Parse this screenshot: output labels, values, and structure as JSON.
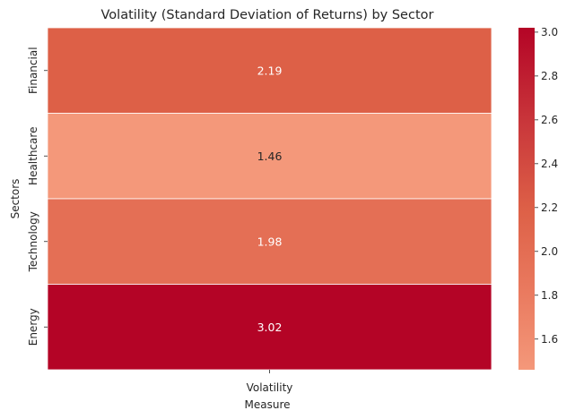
{
  "chart_data": {
    "type": "heatmap",
    "title": "Volatility (Standard Deviation of Returns) by Sector",
    "xlabel": "Measure",
    "ylabel": "Sectors",
    "x_categories": [
      "Volatility"
    ],
    "y_categories": [
      "Financial",
      "Healthcare",
      "Technology",
      "Energy"
    ],
    "values": [
      [
        2.19
      ],
      [
        1.46
      ],
      [
        1.98
      ],
      [
        3.02
      ]
    ],
    "value_labels": [
      "2.19",
      "1.46",
      "1.98",
      "3.02"
    ],
    "colorbar": {
      "min": 1.46,
      "max": 3.02,
      "ticks": [
        1.6,
        1.8,
        2.0,
        2.2,
        2.4,
        2.6,
        2.8,
        3.0
      ],
      "tick_labels": [
        "1.6",
        "1.8",
        "2.0",
        "2.2",
        "2.4",
        "2.6",
        "2.8",
        "3.0"
      ],
      "colormap": "coolwarm"
    },
    "grid": false,
    "cell_separator_color": "#ffffff"
  }
}
